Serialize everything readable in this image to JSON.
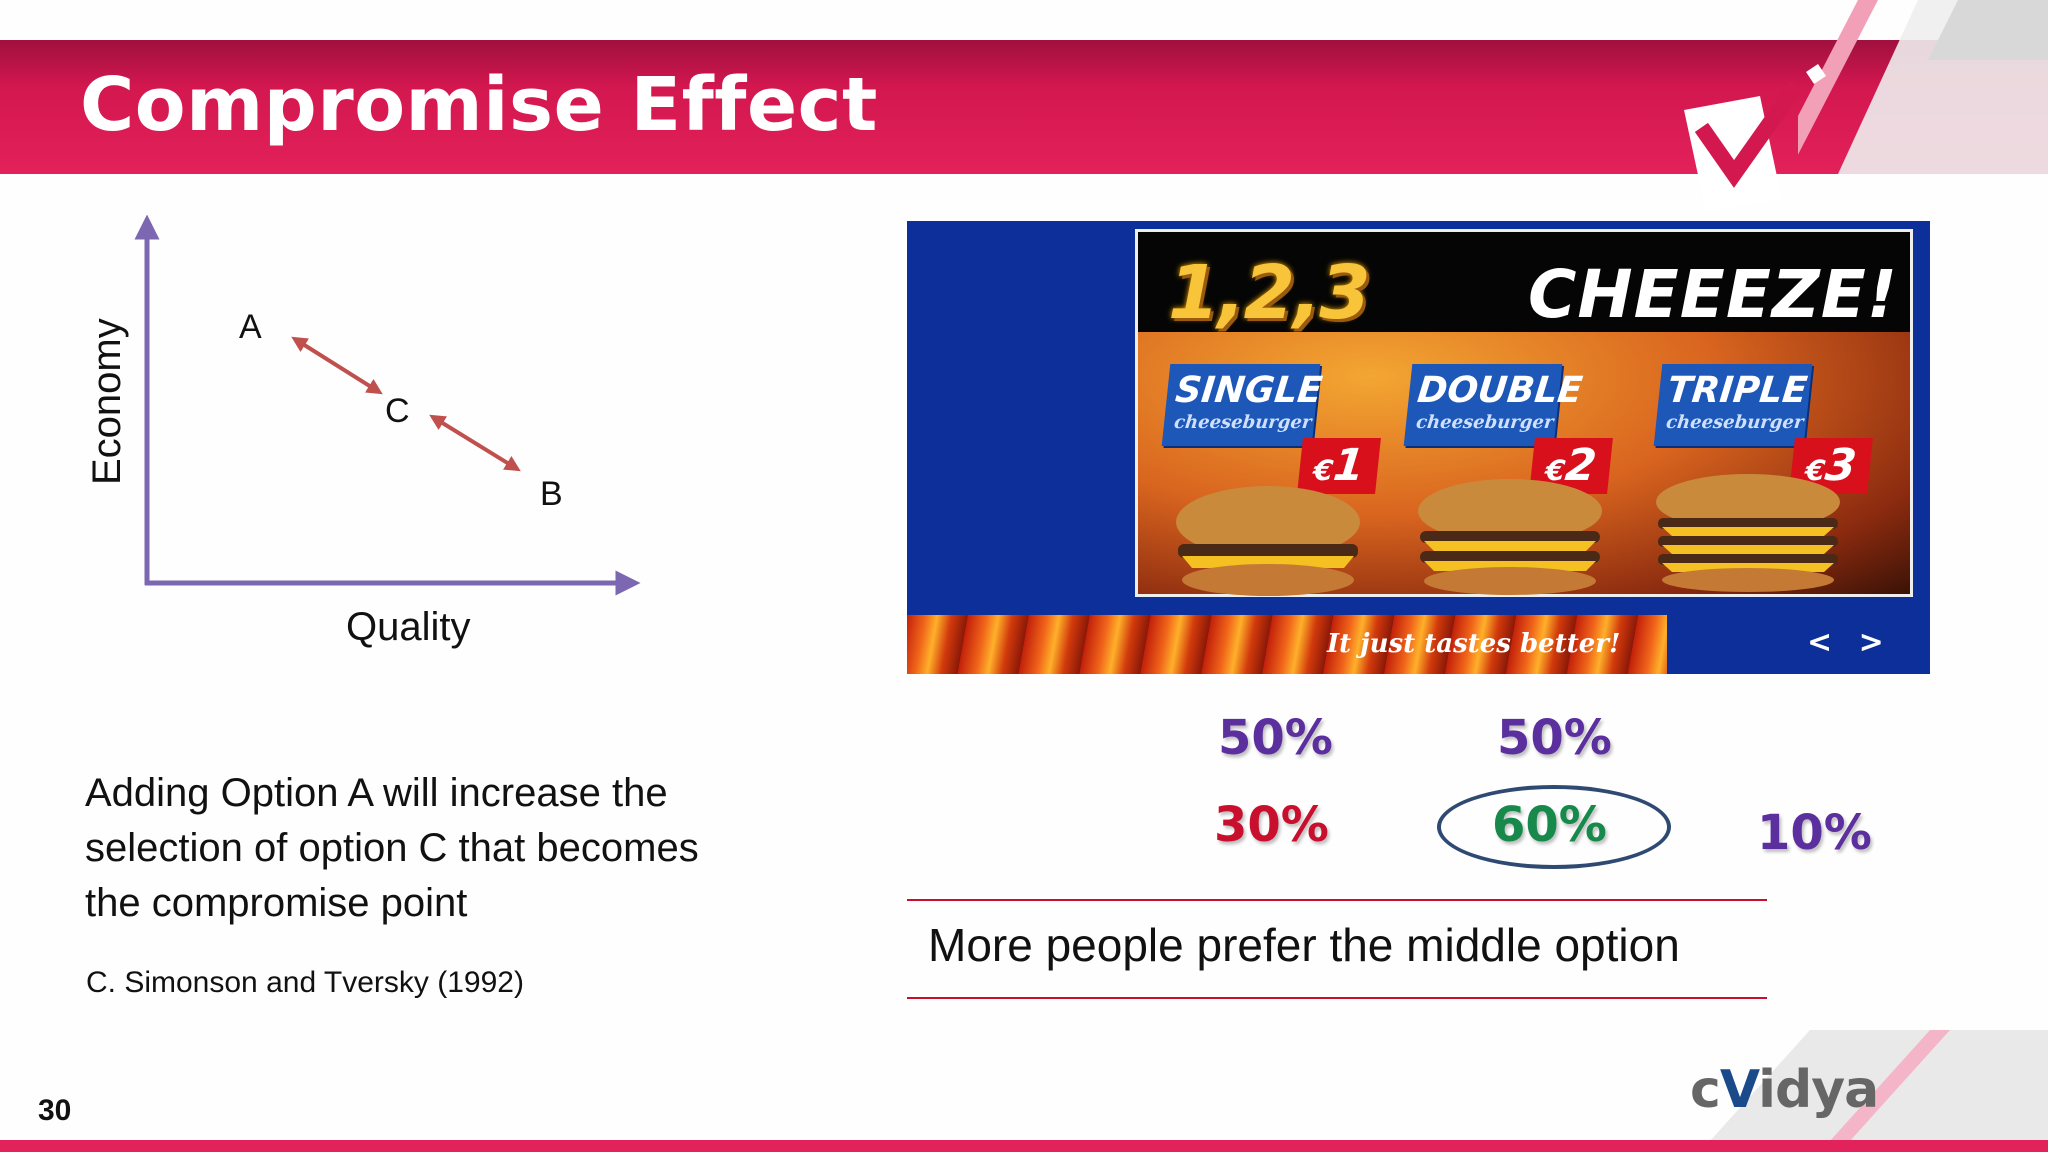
{
  "slide": {
    "title": "Compromise Effect",
    "number": "30"
  },
  "graph": {
    "y_axis_label": "Economy",
    "x_axis_label": "Quality",
    "points": [
      "A",
      "C",
      "B"
    ]
  },
  "explanation": {
    "text": "Adding Option A will increase the selection of option C that becomes the compromise point",
    "citation": "C. Simonson and Tversky (1992)"
  },
  "ad": {
    "headline_numbers": "1,2,3",
    "headline_word": "CHEEEZE!",
    "options": [
      {
        "name": "SINGLE",
        "sub": "cheeseburger",
        "currency": "€",
        "price": "1"
      },
      {
        "name": "DOUBLE",
        "sub": "cheeseburger",
        "currency": "€",
        "price": "2"
      },
      {
        "name": "TRIPLE",
        "sub": "cheeseburger",
        "currency": "€",
        "price": "3"
      }
    ],
    "slogan": "It just tastes better!",
    "nav": "< >"
  },
  "results": {
    "before": [
      "50%",
      "50%"
    ],
    "after": [
      "30%",
      "60%",
      "10%"
    ]
  },
  "conclusion": "More people prefer the middle option",
  "brand": {
    "prefix": "c",
    "mark": "V",
    "suffix": "idya"
  },
  "colors": {
    "header": "#e3215a",
    "purple_pct": "#5b2f9e",
    "red_pct": "#c8102e",
    "green_pct": "#17894a",
    "axis": "#7b68b0",
    "arrow": "#c0504d",
    "rule": "#c8102e"
  }
}
